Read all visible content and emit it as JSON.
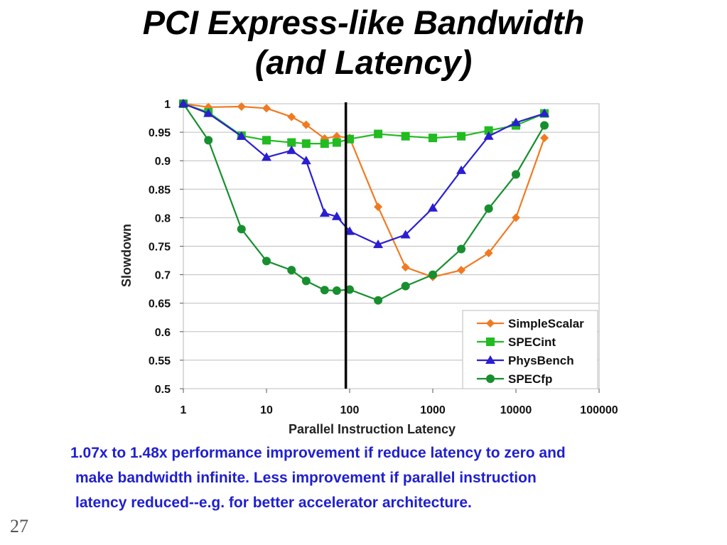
{
  "slide": {
    "title_line1": "PCI Express-like Bandwidth",
    "title_line2": "(and Latency)",
    "caption_lines": [
      "1.07x to 1.48x performance improvement if reduce latency to zero and",
      "make bandwidth infinite. Less improvement if parallel instruction",
      "latency reduced--e.g. for better accelerator architecture."
    ],
    "slide_number": "27"
  },
  "chart_data": {
    "type": "line",
    "xlabel": "Parallel Instruction Latency",
    "ylabel": "Slowdown",
    "x_scale": "log",
    "xlim": [
      1,
      100000
    ],
    "ylim": [
      0.5,
      1.0
    ],
    "x_ticks": [
      "1",
      "10",
      "100",
      "1000",
      "10000",
      "100000"
    ],
    "y_ticks": [
      "1",
      "0.95",
      "0.9",
      "0.85",
      "0.8",
      "0.75",
      "0.7",
      "0.65",
      "0.6",
      "0.55",
      "0.5"
    ],
    "grid": "horizontal",
    "legend_position": "bottom-right",
    "vertical_marker_x": 90,
    "series": [
      {
        "name": "SimpleScalar",
        "color": "#f07a22",
        "marker": "diamond",
        "x": [
          1,
          2,
          5,
          10,
          20,
          30,
          50,
          70,
          100,
          220,
          470,
          1000,
          2200,
          4700,
          10000,
          22000
        ],
        "y": [
          1.0,
          0.994,
          0.995,
          0.992,
          0.977,
          0.963,
          0.939,
          0.943,
          0.94,
          0.819,
          0.713,
          0.696,
          0.708,
          0.738,
          0.8,
          0.94
        ]
      },
      {
        "name": "SPECint",
        "color": "#22bb22",
        "marker": "square",
        "x": [
          1,
          2,
          5,
          10,
          20,
          30,
          50,
          70,
          100,
          220,
          470,
          1000,
          2200,
          4700,
          10000,
          22000
        ],
        "y": [
          1.0,
          0.985,
          0.944,
          0.936,
          0.932,
          0.93,
          0.93,
          0.932,
          0.938,
          0.947,
          0.943,
          0.94,
          0.943,
          0.953,
          0.962,
          0.983
        ]
      },
      {
        "name": "PhysBench",
        "color": "#2a1ed0",
        "marker": "triangle",
        "x": [
          1,
          2,
          5,
          10,
          20,
          30,
          50,
          70,
          100,
          220,
          470,
          1000,
          2200,
          4700,
          10000,
          22000
        ],
        "y": [
          1.0,
          0.983,
          0.943,
          0.906,
          0.918,
          0.9,
          0.808,
          0.802,
          0.776,
          0.753,
          0.77,
          0.817,
          0.883,
          0.943,
          0.967,
          0.983
        ]
      },
      {
        "name": "SPECfp",
        "color": "#178f2e",
        "marker": "circle",
        "x": [
          1,
          2,
          5,
          10,
          20,
          30,
          50,
          70,
          100,
          220,
          470,
          1000,
          2200,
          4700,
          10000,
          22000
        ],
        "y": [
          1.0,
          0.936,
          0.78,
          0.724,
          0.708,
          0.689,
          0.673,
          0.672,
          0.674,
          0.655,
          0.68,
          0.7,
          0.745,
          0.816,
          0.876,
          0.962
        ]
      }
    ]
  }
}
